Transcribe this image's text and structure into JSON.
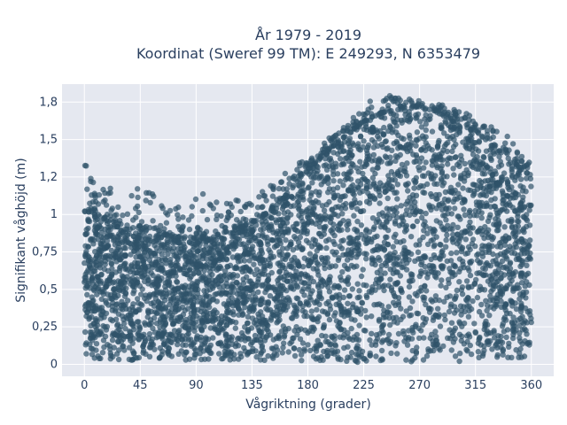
{
  "chart_data": {
    "type": "scatter",
    "title_line1": "År 1979 - 2019",
    "title_line2": "Koordinat (Sweref 99 TM): E 249293, N 6353479",
    "xlabel": "Vågriktning (grader)",
    "ylabel": "Signifikant våghöjd (m)",
    "xlim": [
      -18,
      378
    ],
    "ylim": [
      -0.08,
      1.87
    ],
    "xticks": [
      0,
      45,
      90,
      135,
      180,
      225,
      270,
      315,
      360
    ],
    "yticks": [
      0,
      0.25,
      0.5,
      0.75,
      1,
      1.25,
      1.5,
      1.75
    ],
    "ytick_labels": [
      "0",
      "0,25",
      "0,5",
      "0,75",
      "1",
      "1,2",
      "1,5",
      "1,8"
    ],
    "grid": true,
    "marker_color": "#2f5269",
    "plot_background": "#e5e8f0",
    "envelope": {
      "x": [
        0,
        15,
        30,
        45,
        60,
        75,
        90,
        105,
        120,
        135,
        150,
        165,
        180,
        195,
        210,
        225,
        240,
        255,
        270,
        285,
        300,
        315,
        330,
        345,
        360
      ],
      "dense_max": [
        1.02,
        0.98,
        0.93,
        0.9,
        0.87,
        0.85,
        0.84,
        0.86,
        0.9,
        0.94,
        1.02,
        1.15,
        1.3,
        1.42,
        1.52,
        1.62,
        1.68,
        1.7,
        1.72,
        1.68,
        1.62,
        1.56,
        1.45,
        1.35,
        1.25
      ],
      "outlier_max": [
        1.35,
        1.2,
        1.15,
        1.25,
        1.13,
        1.05,
        1.18,
        1.15,
        1.12,
        1.1,
        1.2,
        1.3,
        1.38,
        1.5,
        1.6,
        1.73,
        1.82,
        1.78,
        1.76,
        1.74,
        1.7,
        1.65,
        1.58,
        1.5,
        1.38
      ],
      "min": [
        0.04,
        0.03,
        0.03,
        0.02,
        0.03,
        0.03,
        0.02,
        0.03,
        0.02,
        0.02,
        0.02,
        0.02,
        0.02,
        0.01,
        0.01,
        0.01,
        0.01,
        0.02,
        0.01,
        0.02,
        0.02,
        0.02,
        0.03,
        0.03,
        0.04
      ]
    }
  }
}
